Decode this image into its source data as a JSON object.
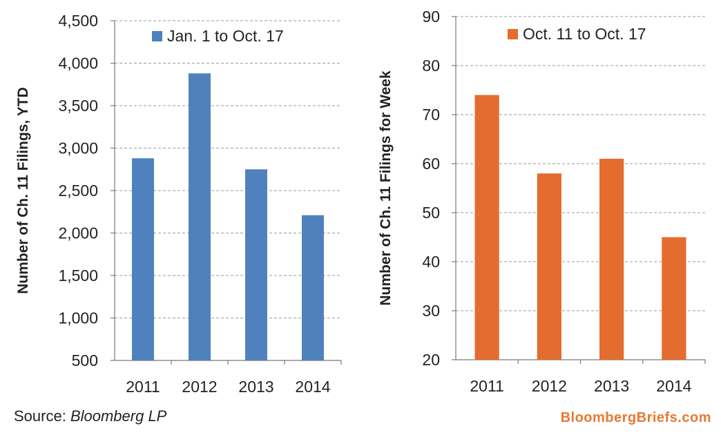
{
  "chart_data": [
    {
      "type": "bar",
      "categories": [
        "2011",
        "2012",
        "2013",
        "2014"
      ],
      "series": [
        {
          "name": "Jan. 1 to Oct. 17",
          "values": [
            2880,
            3880,
            2750,
            2210
          ],
          "color": "#4f81bd"
        }
      ],
      "title": "",
      "xlabel": "",
      "ylabel": "Number of Ch. 11 Filings, YTD",
      "ylim": [
        500,
        4500
      ],
      "yticks": [
        "500",
        "1,000",
        "1,500",
        "2,000",
        "2,500",
        "3,000",
        "3,500",
        "4,000",
        "4,500"
      ],
      "grid": true,
      "legend_position": "top"
    },
    {
      "type": "bar",
      "categories": [
        "2011",
        "2012",
        "2013",
        "2014"
      ],
      "series": [
        {
          "name": "Oct. 11 to Oct. 17",
          "values": [
            74,
            58,
            61,
            45
          ],
          "color": "#e46c2f"
        }
      ],
      "title": "",
      "xlabel": "",
      "ylabel": "Number of Ch. 11 Filings for Week",
      "ylim": [
        20,
        90
      ],
      "yticks": [
        "20",
        "30",
        "40",
        "50",
        "60",
        "70",
        "80",
        "90"
      ],
      "grid": true,
      "legend_position": "top"
    }
  ],
  "footer": {
    "source_prefix": "Source: ",
    "source_name": "Bloomberg LP",
    "brand": "BloombergBriefs.com"
  }
}
